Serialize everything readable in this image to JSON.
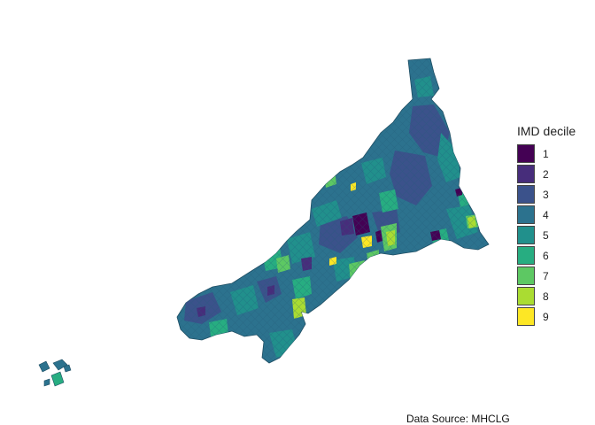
{
  "map": {
    "region": "Cornwall",
    "fill_by": "IMD decile"
  },
  "legend": {
    "title": "IMD decile",
    "items": [
      {
        "label": "1",
        "color": "#440154"
      },
      {
        "label": "2",
        "color": "#472d7b"
      },
      {
        "label": "3",
        "color": "#3b528b"
      },
      {
        "label": "4",
        "color": "#2c728e"
      },
      {
        "label": "5",
        "color": "#21908c"
      },
      {
        "label": "6",
        "color": "#27ad81"
      },
      {
        "label": "7",
        "color": "#5dc863"
      },
      {
        "label": "8",
        "color": "#aadc32"
      },
      {
        "label": "9",
        "color": "#fde725"
      }
    ]
  },
  "caption": "Data Source: MHCLG"
}
